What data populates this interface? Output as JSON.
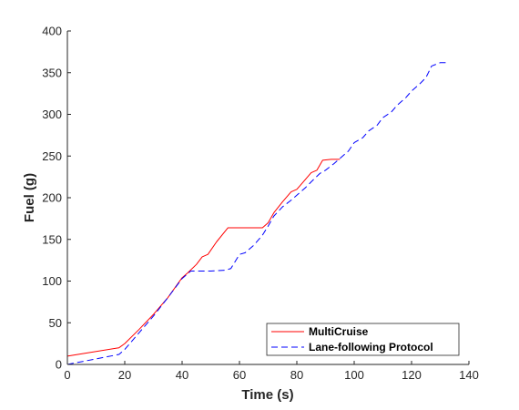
{
  "chart_data": {
    "type": "line",
    "title": "",
    "xlabel": "Time (s)",
    "ylabel": "Fuel (g)",
    "xlim": [
      0,
      140
    ],
    "ylim": [
      0,
      400
    ],
    "xticks": [
      0,
      20,
      40,
      60,
      80,
      100,
      120,
      140
    ],
    "yticks": [
      0,
      50,
      100,
      150,
      200,
      250,
      300,
      350,
      400
    ],
    "grid": false,
    "legend_position": "bottom-right",
    "series": [
      {
        "name": "MultiCruise",
        "color": "#ff0000",
        "line_style": "solid",
        "x": [
          0,
          18,
          20,
          25,
          30,
          35,
          40,
          42,
          45,
          47,
          49,
          52,
          56,
          60,
          64,
          68,
          70,
          72,
          75,
          78,
          80,
          82,
          85,
          87,
          89,
          92,
          95
        ],
        "y": [
          10,
          20,
          25,
          42,
          60,
          80,
          104,
          110,
          120,
          129,
          132,
          147,
          164,
          164,
          164,
          164,
          170,
          182,
          195,
          207,
          210,
          218,
          230,
          233,
          245,
          246,
          246
        ]
      },
      {
        "name": "Lane-following Protocol",
        "color": "#0000ff",
        "line_style": "dashed",
        "x": [
          0,
          18,
          20,
          25,
          30,
          35,
          40,
          43,
          47,
          50,
          55,
          57,
          60,
          62,
          65,
          68,
          70,
          72,
          75,
          78,
          80,
          83,
          85,
          88,
          90,
          93,
          95,
          98,
          100,
          103,
          105,
          108,
          110,
          113,
          115,
          118,
          120,
          123,
          125,
          127,
          130,
          132
        ],
        "y": [
          0,
          12,
          18,
          38,
          58,
          80,
          103,
          112,
          112,
          112,
          113,
          115,
          132,
          134,
          143,
          155,
          166,
          178,
          189,
          197,
          203,
          212,
          219,
          229,
          233,
          241,
          247,
          256,
          266,
          272,
          280,
          287,
          296,
          303,
          311,
          320,
          328,
          337,
          344,
          358,
          362,
          362
        ]
      }
    ]
  }
}
